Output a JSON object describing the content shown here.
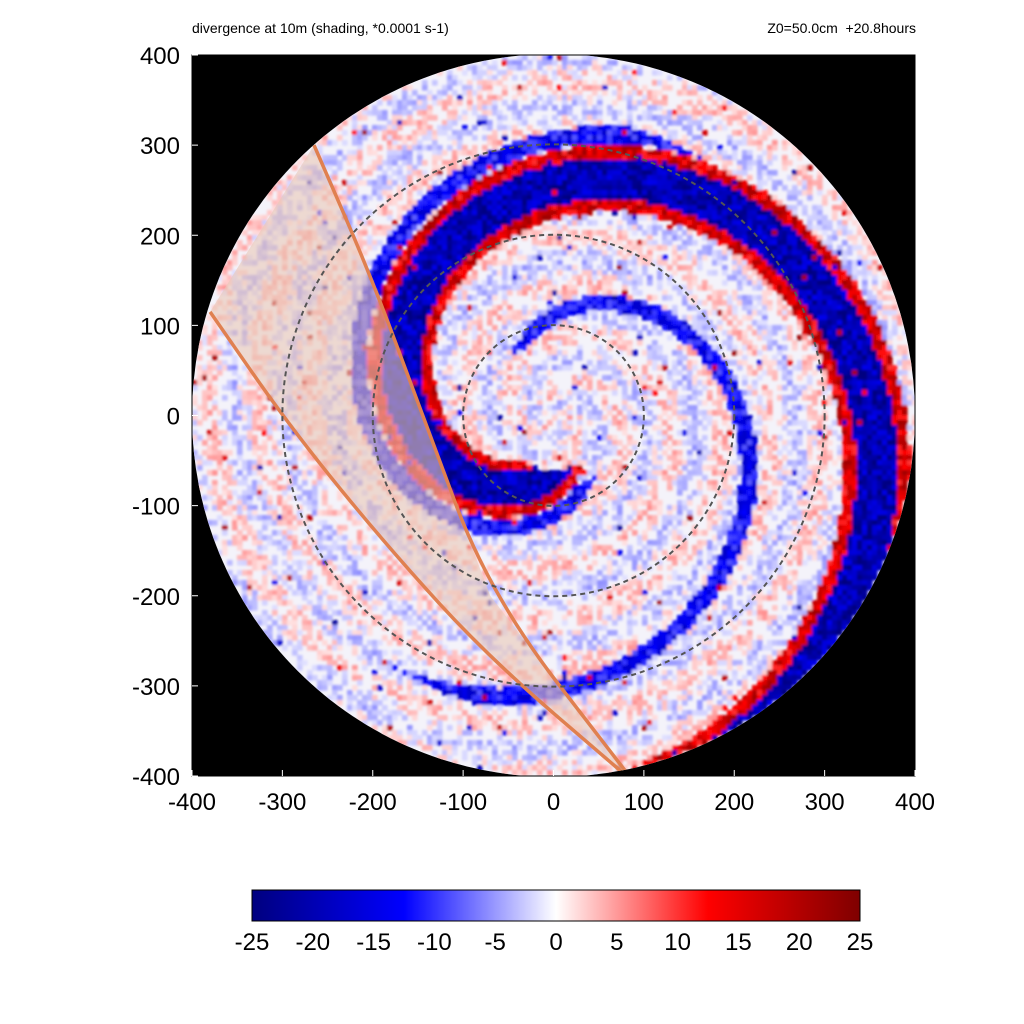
{
  "title_left": "divergence at 10m (shading, *0.0001 s-1)",
  "title_right": "Z0=50.0cm  +20.8hours",
  "chart_data": {
    "type": "heatmap",
    "field": "divergence at 10m",
    "units_scale": "*0.0001 s-1",
    "xlim": [
      -400,
      400
    ],
    "ylim": [
      -400,
      400
    ],
    "x_ticks": [
      -400,
      -300,
      -200,
      -100,
      0,
      100,
      200,
      300,
      400
    ],
    "y_ticks": [
      -400,
      -300,
      -200,
      -100,
      0,
      100,
      200,
      300,
      400
    ],
    "x_tick_labels": [
      "-400",
      "-300",
      "-200",
      "-100",
      "0",
      "100",
      "200",
      "300",
      "400"
    ],
    "y_tick_labels": [
      "400",
      "300",
      "200",
      "100",
      "0",
      "-100",
      "-200",
      "-300",
      "-400"
    ],
    "domain_radius": 400,
    "range_rings": [
      100,
      200,
      300
    ],
    "colorbar": {
      "range": [
        -25,
        25
      ],
      "ticks": [
        -25,
        -20,
        -15,
        -10,
        -5,
        0,
        5,
        10,
        15,
        20,
        25
      ],
      "tick_labels": [
        "-25",
        "-20",
        "-15",
        "-10",
        "-5",
        "0",
        "5",
        "10",
        "15",
        "20",
        "25"
      ],
      "colors": [
        "#00007f",
        "#0000ff",
        "#ffffff",
        "#ff0000",
        "#7f0000"
      ]
    },
    "shaded_sector": {
      "edge_1": [
        [
          -265,
          300
        ],
        [
          -200,
          150
        ],
        [
          -145,
          0
        ],
        [
          -70,
          -200
        ],
        [
          80,
          -395
        ]
      ],
      "edge_2": [
        [
          -380,
          115
        ],
        [
          -290,
          -15
        ],
        [
          -180,
          -150
        ],
        [
          -70,
          -270
        ],
        [
          75,
          -395
        ]
      ],
      "fill_color": "#e8c8b8",
      "line_color": "#e08050"
    },
    "background_color": "#000000"
  }
}
